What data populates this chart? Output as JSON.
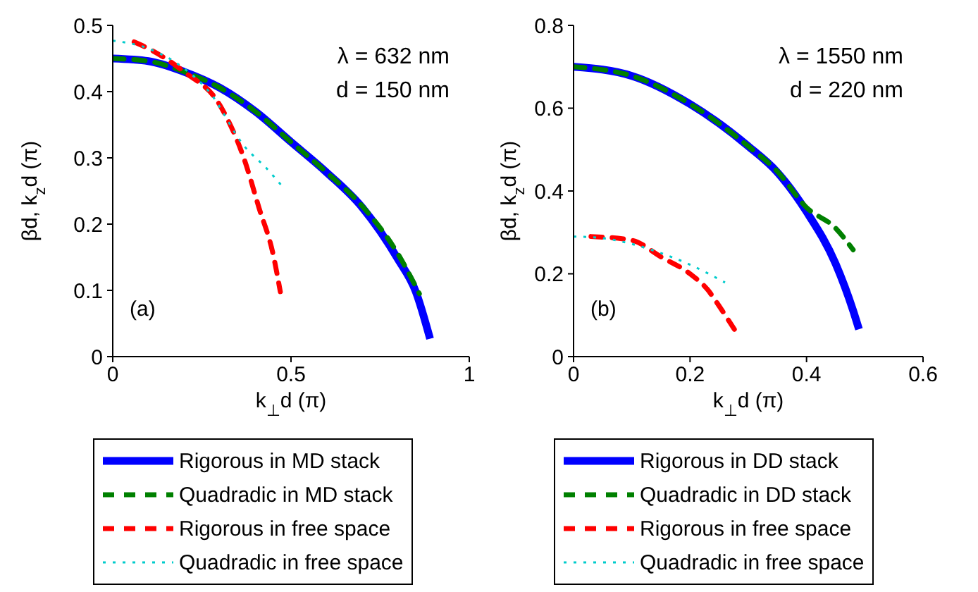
{
  "chart_data": [
    {
      "type": "line",
      "xlabel": "k$_{⊥}$d (π)",
      "ylabel": "βd, k$_{z}$d (π)",
      "annotations": [
        "λ = 632 nm",
        "d = 150 nm",
        "(a)"
      ],
      "xlim": [
        0,
        1
      ],
      "xticks": [
        0,
        0.5,
        1
      ],
      "ylim": [
        0,
        0.5
      ],
      "yticks": [
        0,
        0.1,
        0.2,
        0.3,
        0.4,
        0.5
      ],
      "legend": "bottom",
      "grid": false,
      "marker": "none",
      "series": [
        {
          "name": "Rigorous in MD stack",
          "color": "#0000ff",
          "line_style": "solid",
          "x": [
            0,
            0.1,
            0.2,
            0.3,
            0.4,
            0.5,
            0.6,
            0.7,
            0.8,
            0.85,
            0.89
          ],
          "values": [
            0.45,
            0.446,
            0.43,
            0.406,
            0.37,
            0.324,
            0.278,
            0.225,
            0.147,
            0.098,
            0.027
          ]
        },
        {
          "name": "Quadradic in MD stack",
          "color": "#008000",
          "line_style": "dashed",
          "x": [
            0,
            0.1,
            0.2,
            0.3,
            0.4,
            0.5,
            0.6,
            0.7,
            0.8,
            0.86
          ],
          "values": [
            0.45,
            0.446,
            0.43,
            0.406,
            0.37,
            0.324,
            0.278,
            0.227,
            0.155,
            0.095
          ]
        },
        {
          "name": "Rigorous in free space",
          "color": "#ff0000",
          "line_style": "dashed",
          "x": [
            0.06,
            0.1,
            0.2,
            0.3,
            0.37,
            0.41,
            0.45,
            0.47
          ],
          "values": [
            0.475,
            0.465,
            0.43,
            0.38,
            0.296,
            0.225,
            0.154,
            0.098
          ]
        },
        {
          "name": "Quadradic in free space",
          "color": "#00cccc",
          "line_style": "dotted",
          "x": [
            0,
            0.1,
            0.2,
            0.27,
            0.37,
            0.43,
            0.48
          ],
          "values": [
            0.477,
            0.465,
            0.435,
            0.4,
            0.317,
            0.285,
            0.254
          ]
        }
      ]
    },
    {
      "type": "line",
      "xlabel": "k$_{⊥}$d (π)",
      "ylabel": "βd, k$_{z}$d (π)",
      "annotations": [
        "λ = 1550 nm",
        "d = 220 nm",
        "(b)"
      ],
      "xlim": [
        0,
        0.6
      ],
      "xticks": [
        0,
        0.2,
        0.4,
        0.6
      ],
      "ylim": [
        0,
        0.8
      ],
      "yticks": [
        0,
        0.2,
        0.4,
        0.6,
        0.8
      ],
      "legend": "bottom",
      "grid": false,
      "marker": "none",
      "series": [
        {
          "name": "Rigorous in DD stack",
          "color": "#0000ff",
          "line_style": "solid",
          "x": [
            0,
            0.1,
            0.2,
            0.3,
            0.35,
            0.4,
            0.45,
            0.48,
            0.49
          ],
          "values": [
            0.7,
            0.678,
            0.61,
            0.508,
            0.445,
            0.35,
            0.224,
            0.111,
            0.066
          ]
        },
        {
          "name": "Quadradic in DD stack",
          "color": "#008000",
          "line_style": "dashed",
          "x": [
            0,
            0.1,
            0.2,
            0.3,
            0.35,
            0.4,
            0.45,
            0.48
          ],
          "values": [
            0.7,
            0.678,
            0.61,
            0.508,
            0.447,
            0.36,
            0.31,
            0.258
          ]
        },
        {
          "name": "Rigorous in free space",
          "color": "#ff0000",
          "line_style": "dashed",
          "x": [
            0.03,
            0.1,
            0.15,
            0.2,
            0.23,
            0.25,
            0.276
          ],
          "values": [
            0.29,
            0.281,
            0.241,
            0.2,
            0.162,
            0.122,
            0.066
          ]
        },
        {
          "name": "Quadradic in free space",
          "color": "#00cccc",
          "line_style": "dotted",
          "x": [
            0,
            0.05,
            0.1,
            0.15,
            0.2,
            0.26
          ],
          "values": [
            0.29,
            0.286,
            0.272,
            0.25,
            0.222,
            0.179
          ]
        }
      ]
    }
  ]
}
